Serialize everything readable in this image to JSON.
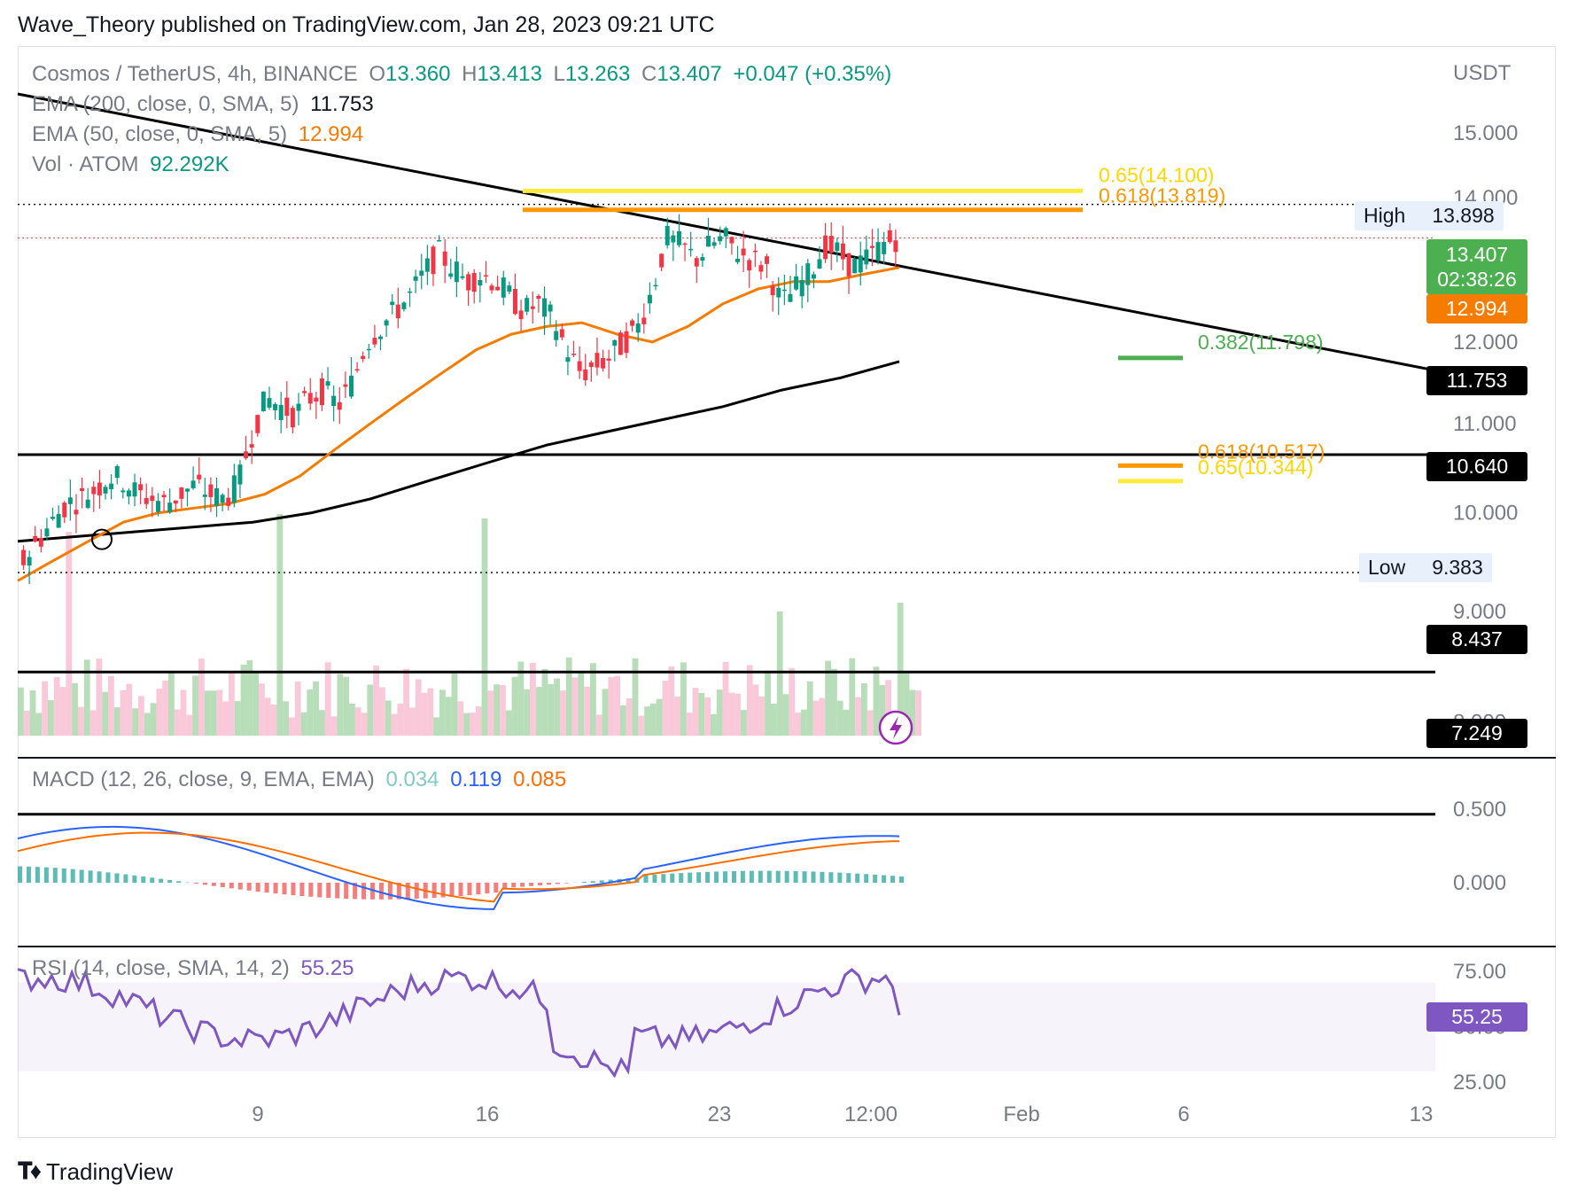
{
  "header": {
    "published": "Wave_Theory published on TradingView.com, Jan 28, 2023 09:21 UTC"
  },
  "legend": {
    "symbol": "Cosmos / TetherUS, 4h, BINANCE",
    "o_label": "O",
    "o_value": "13.360",
    "h_label": "H",
    "h_value": "13.413",
    "l_label": "L",
    "l_value": "13.263",
    "c_label": "C",
    "c_value": "13.407",
    "change": "+0.047 (+0.35%)",
    "ema200_label": "EMA (200, close, 0, SMA, 5)",
    "ema200_value": "11.753",
    "ema50_label": "EMA (50, close, 0, SMA, 5)",
    "ema50_value": "12.994",
    "vol_label": "Vol · ATOM",
    "vol_value": "92.292K",
    "macd_label": "MACD (12, 26, close, 9, EMA, EMA)",
    "macd_hist": "0.034",
    "macd_line": "0.119",
    "macd_signal": "0.085",
    "rsi_label": "RSI (14, close, SMA, 14, 2)",
    "rsi_value": "55.25"
  },
  "tags": {
    "price": "13.407",
    "countdown": "02:38:26",
    "ema50": "12.994",
    "ema200": "11.753",
    "support_10640": "10.640",
    "support_8437": "8.437",
    "support_7249": "7.249",
    "high_label": "High",
    "high_value": "13.898",
    "low_label": "Low",
    "low_value": "9.383",
    "rsi": "55.25"
  },
  "fib_labels": {
    "f065_high": "0.65(14.100)",
    "f0618_high": "0.618(13.819)",
    "f0382": "0.382(11.798)",
    "f0618_low": "0.618(10.517)",
    "f065_low": "0.65(10.344)"
  },
  "axis": {
    "currency": "USDT",
    "price_ticks": [
      "15.000",
      "14.000",
      "12.000",
      "11.000",
      "10.000",
      "9.000",
      "8.000"
    ],
    "macd_ticks": [
      "0.500",
      "0.000"
    ],
    "rsi_ticks": [
      "75.00",
      "50.00",
      "25.00"
    ],
    "time_ticks": [
      "9",
      "16",
      "23",
      "12:00",
      "Feb",
      "6",
      "13"
    ]
  },
  "footer": {
    "brand": "TradingView"
  },
  "colors": {
    "up": "#089981",
    "down": "#f23645",
    "ema50": "#f57c00",
    "ema200": "#000000",
    "fib_yellow": "#ffeb3b",
    "fib_orange": "#ff9800",
    "fib_green": "#4caf50",
    "macd": "#2962ff",
    "signal": "#ff6d00",
    "rsi": "#7e57c2"
  },
  "chart_data": {
    "type": "candlestick",
    "title": "Cosmos / TetherUS, 4h, BINANCE",
    "ylabel": "USDT",
    "price_axis": {
      "min": 7.0,
      "max": 15.5,
      "log_scale": true
    },
    "x_ticks": [
      "9",
      "16",
      "23",
      "12:00",
      "Feb",
      "6",
      "13"
    ],
    "close_path": [
      9.5,
      9.7,
      9.9,
      10.1,
      10.15,
      10.25,
      10.4,
      10.35,
      10.2,
      10.15,
      10.1,
      10.2,
      10.3,
      10.2,
      10.15,
      10.3,
      10.9,
      11.3,
      11.2,
      11.1,
      11.3,
      11.4,
      11.2,
      11.5,
      12.0,
      12.2,
      12.4,
      12.6,
      12.9,
      13.2,
      13.0,
      12.8,
      12.9,
      12.8,
      12.6,
      12.4,
      12.5,
      12.3,
      11.9,
      11.6,
      11.7,
      11.8,
      12.0,
      12.2,
      12.7,
      13.4,
      13.3,
      13.1,
      13.3,
      13.4,
      13.2,
      13.1,
      13.0,
      12.5,
      12.7,
      12.9,
      13.3,
      13.2,
      13.0,
      13.1,
      13.3,
      13.407
    ],
    "ema50": {
      "last": 12.994,
      "path": [
        9.3,
        9.5,
        9.7,
        9.9,
        10.0,
        10.05,
        10.1,
        10.2,
        10.4,
        10.7,
        11.0,
        11.3,
        11.6,
        11.9,
        12.1,
        12.2,
        12.25,
        12.1,
        12.0,
        12.2,
        12.5,
        12.7,
        12.8,
        12.8,
        12.9,
        12.994
      ]
    },
    "ema200": {
      "last": 11.753,
      "path": [
        9.7,
        9.75,
        9.8,
        9.85,
        9.9,
        10.0,
        10.15,
        10.35,
        10.55,
        10.75,
        10.9,
        11.05,
        11.2,
        11.4,
        11.55,
        11.753
      ]
    },
    "levels": [
      {
        "label": "High",
        "value": 13.898
      },
      {
        "label": "Low",
        "value": 9.383
      },
      {
        "value": 10.64
      },
      {
        "value": 8.437
      },
      {
        "value": 7.249
      }
    ],
    "fibonacci": [
      {
        "ratio": 0.65,
        "value": 14.1
      },
      {
        "ratio": 0.618,
        "value": 13.819
      },
      {
        "ratio": 0.382,
        "value": 11.798
      },
      {
        "ratio": 0.618,
        "value": 10.517
      },
      {
        "ratio": 0.65,
        "value": 10.344
      }
    ],
    "macd": {
      "histogram": 0.034,
      "macd": 0.119,
      "signal": 0.085,
      "axis_ticks": [
        0.5,
        0.0
      ]
    },
    "rsi": {
      "value": 55.25,
      "band": [
        30,
        70
      ],
      "axis_ticks": [
        75,
        50,
        25
      ]
    }
  }
}
